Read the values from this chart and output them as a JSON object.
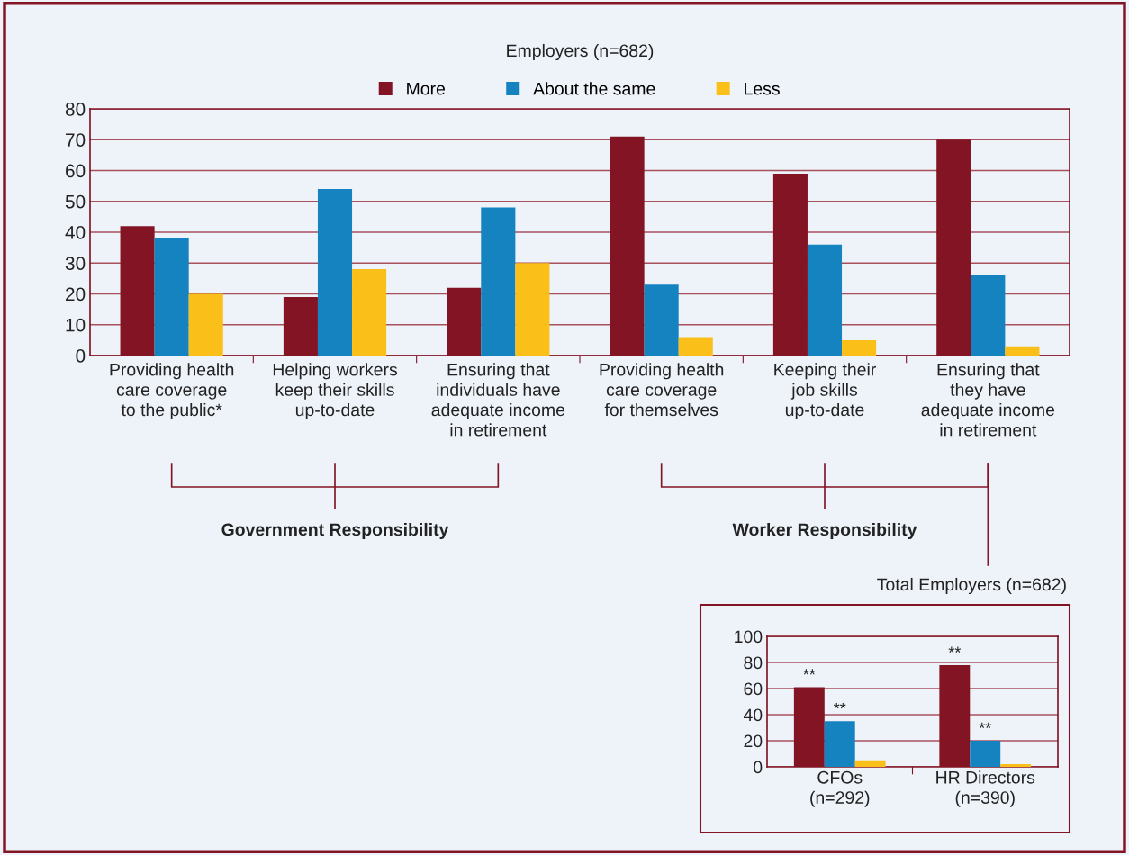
{
  "chart_data": [
    {
      "type": "bar",
      "title": "Employers (n=682)",
      "categories": [
        "Providing health\ncare coverage\nto the public*",
        "Helping workers\nkeep their skills\nup-to-date",
        "Ensuring that\nindividuals have\nadequate income\nin retirement",
        "Providing health\ncare coverage\nfor themselves",
        "Keeping their\njob skills\nup-to-date",
        "Ensuring that\nthey have\nadequate income\nin retirement"
      ],
      "series": [
        {
          "name": "More",
          "color": "#821424",
          "values": [
            42,
            19,
            22,
            71,
            59,
            70
          ]
        },
        {
          "name": "About the same",
          "color": "#1583c0",
          "values": [
            38,
            54,
            48,
            23,
            36,
            26
          ]
        },
        {
          "name": "Less",
          "color": "#fbbf1a",
          "values": [
            20,
            28,
            30,
            6,
            5,
            3
          ]
        }
      ],
      "ylim": [
        0,
        80
      ],
      "yticks": [
        0,
        10,
        20,
        30,
        40,
        50,
        60,
        70,
        80
      ],
      "grid": "y",
      "legend": "top",
      "annotations": [
        "Government Responsibility",
        "Worker Responsibility"
      ]
    },
    {
      "type": "bar",
      "title": "Total Employers (n=682)",
      "categories": [
        "CFOs\n(n=292)",
        "HR Directors\n(n=390)"
      ],
      "series": [
        {
          "color": "#821424",
          "values": [
            61,
            78
          ],
          "value_labels": [
            "**",
            "**"
          ]
        },
        {
          "color": "#1583c0",
          "values": [
            35,
            20
          ],
          "value_labels": [
            "**",
            "**"
          ]
        },
        {
          "color": "#fbbf1a",
          "values": [
            5,
            2
          ]
        }
      ],
      "ylim": [
        0,
        100
      ],
      "yticks": [
        0,
        20,
        40,
        60,
        80,
        100
      ],
      "grid": "y"
    }
  ]
}
